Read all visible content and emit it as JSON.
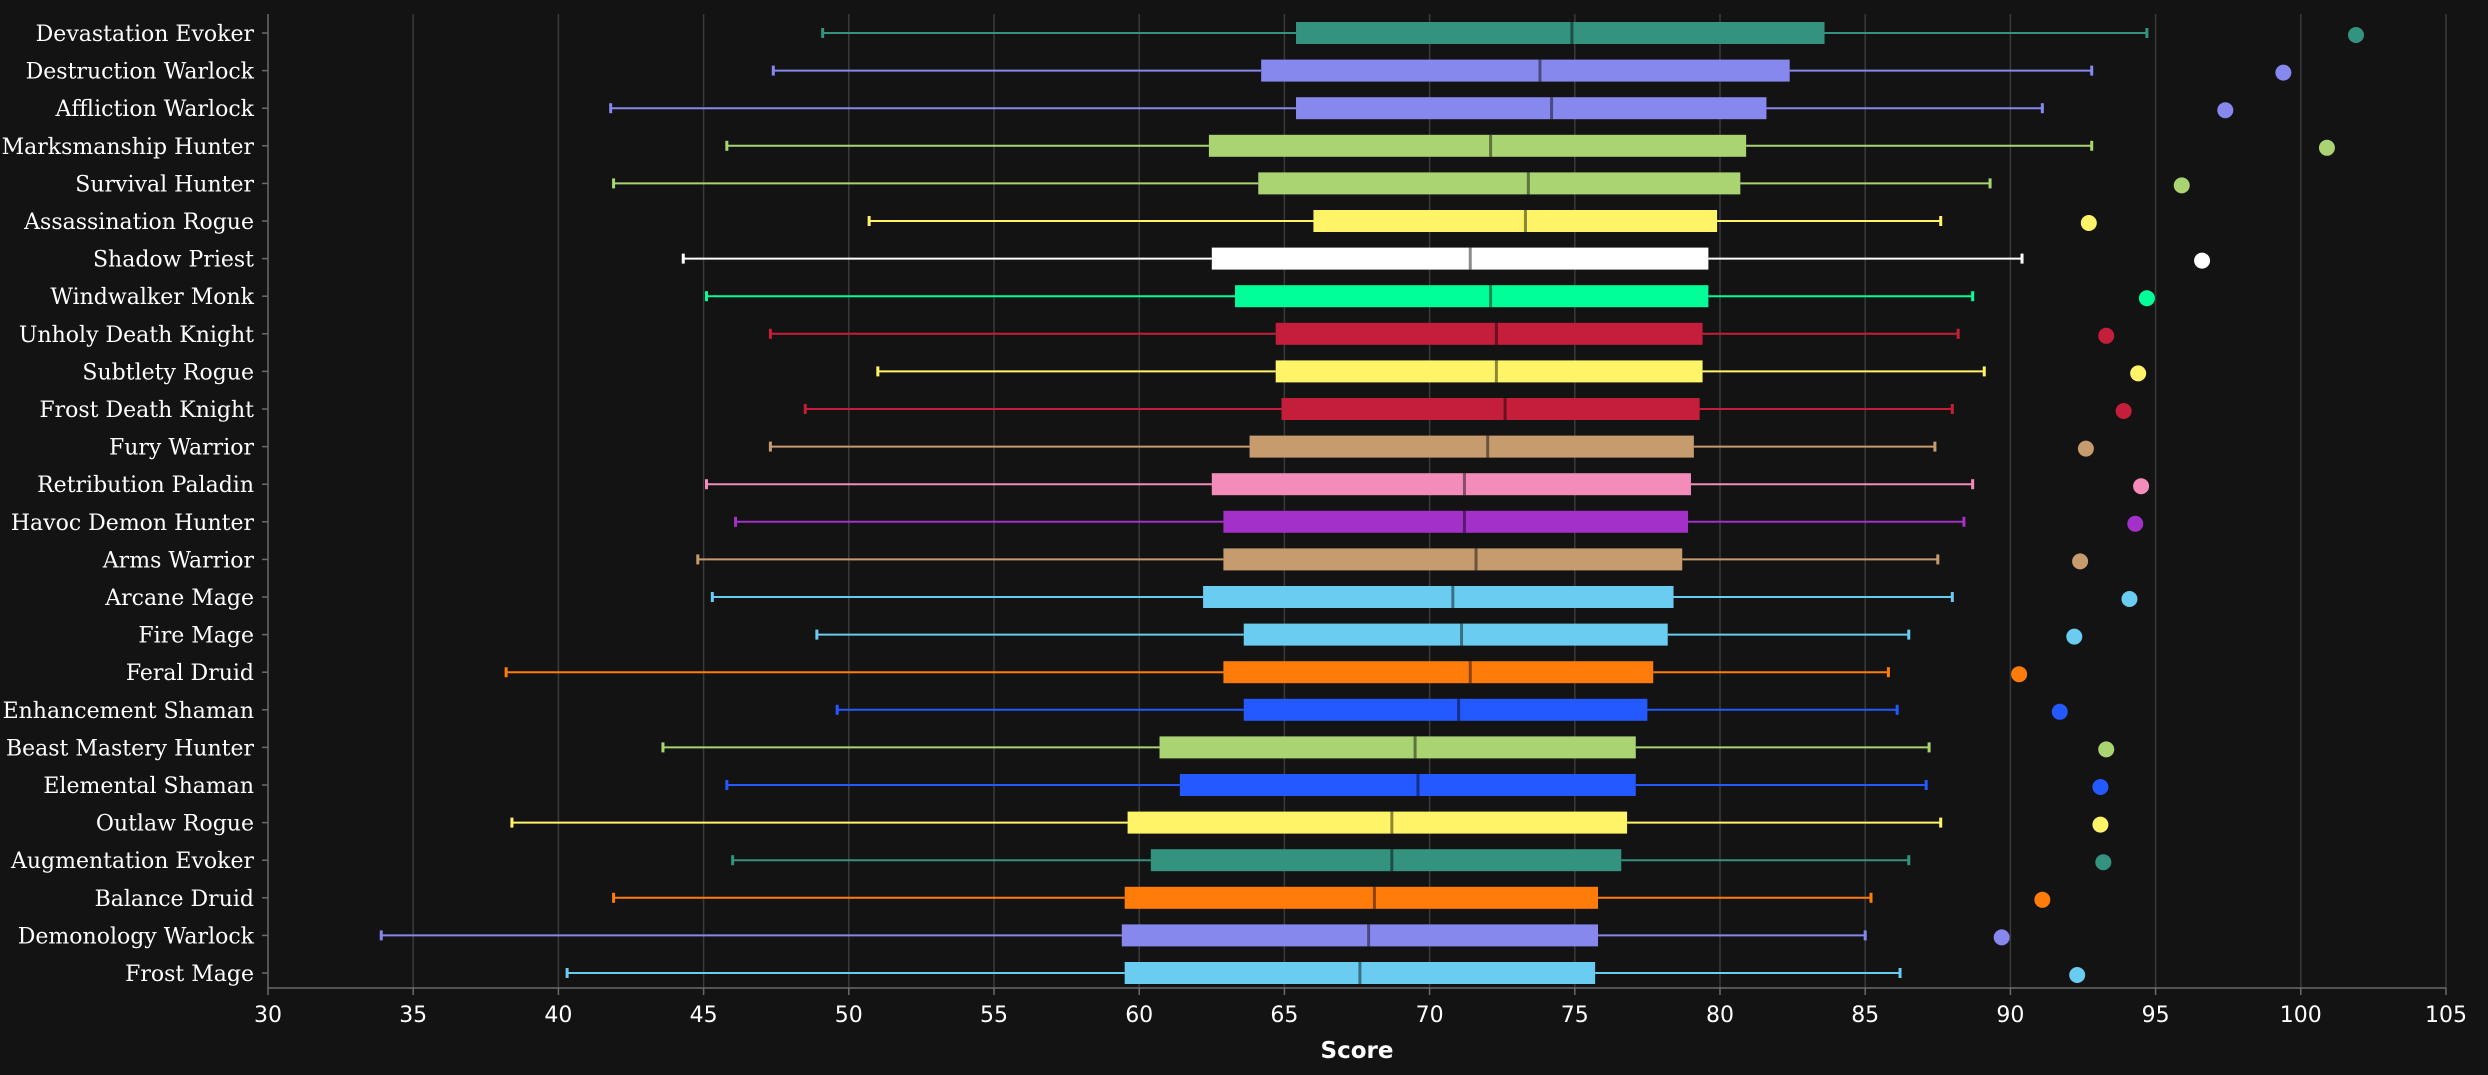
{
  "chart_data": {
    "type": "boxplot",
    "orientation": "horizontal",
    "xlabel": "Score",
    "xlim": [
      30,
      105
    ],
    "xticks": [
      30,
      35,
      40,
      45,
      50,
      55,
      60,
      65,
      70,
      75,
      80,
      85,
      90,
      95,
      100,
      105
    ],
    "grid": true,
    "series": [
      {
        "name": "Devastation Evoker",
        "color": "#33937f",
        "min": 49.1,
        "q1": 65.4,
        "median": 74.9,
        "q3": 83.6,
        "max": 94.7,
        "outlier": 101.9
      },
      {
        "name": "Destruction Warlock",
        "color": "#8788ee",
        "min": 47.4,
        "q1": 64.2,
        "median": 73.8,
        "q3": 82.4,
        "max": 92.8,
        "outlier": 99.4
      },
      {
        "name": "Affliction Warlock",
        "color": "#8788ee",
        "min": 41.8,
        "q1": 65.4,
        "median": 74.2,
        "q3": 81.6,
        "max": 91.1,
        "outlier": 97.4
      },
      {
        "name": "Marksmanship Hunter",
        "color": "#aad372",
        "min": 45.8,
        "q1": 62.4,
        "median": 72.1,
        "q3": 80.9,
        "max": 92.8,
        "outlier": 100.9
      },
      {
        "name": "Survival Hunter",
        "color": "#aad372",
        "min": 41.9,
        "q1": 64.1,
        "median": 73.4,
        "q3": 80.7,
        "max": 89.3,
        "outlier": 95.9
      },
      {
        "name": "Assassination Rogue",
        "color": "#fff468",
        "min": 50.7,
        "q1": 66,
        "median": 73.3,
        "q3": 79.9,
        "max": 87.6,
        "outlier": 92.7
      },
      {
        "name": "Shadow Priest",
        "color": "#ffffff",
        "min": 44.3,
        "q1": 62.5,
        "median": 71.4,
        "q3": 79.6,
        "max": 90.4,
        "outlier": 96.6
      },
      {
        "name": "Windwalker Monk",
        "color": "#00ff98",
        "min": 45.1,
        "q1": 63.3,
        "median": 72.1,
        "q3": 79.6,
        "max": 88.7,
        "outlier": 94.7
      },
      {
        "name": "Unholy Death Knight",
        "color": "#c41e3a",
        "min": 47.3,
        "q1": 64.7,
        "median": 72.3,
        "q3": 79.4,
        "max": 88.2,
        "outlier": 93.3
      },
      {
        "name": "Subtlety Rogue",
        "color": "#fff468",
        "min": 51,
        "q1": 64.7,
        "median": 72.3,
        "q3": 79.4,
        "max": 89.1,
        "outlier": 94.4
      },
      {
        "name": "Frost Death Knight",
        "color": "#c41e3a",
        "min": 48.5,
        "q1": 64.9,
        "median": 72.6,
        "q3": 79.3,
        "max": 88,
        "outlier": 93.9
      },
      {
        "name": "Fury Warrior",
        "color": "#c69b6d",
        "min": 47.3,
        "q1": 63.8,
        "median": 72,
        "q3": 79.1,
        "max": 87.4,
        "outlier": 92.6
      },
      {
        "name": "Retribution Paladin",
        "color": "#f48cba",
        "min": 45.1,
        "q1": 62.5,
        "median": 71.2,
        "q3": 79,
        "max": 88.7,
        "outlier": 94.5
      },
      {
        "name": "Havoc Demon Hunter",
        "color": "#a330c9",
        "min": 46.1,
        "q1": 62.9,
        "median": 71.2,
        "q3": 78.9,
        "max": 88.4,
        "outlier": 94.3
      },
      {
        "name": "Arms Warrior",
        "color": "#c69b6d",
        "min": 44.8,
        "q1": 62.9,
        "median": 71.6,
        "q3": 78.7,
        "max": 87.5,
        "outlier": 92.4
      },
      {
        "name": "Arcane Mage",
        "color": "#69ccf0",
        "min": 45.3,
        "q1": 62.2,
        "median": 70.8,
        "q3": 78.4,
        "max": 88,
        "outlier": 94.1
      },
      {
        "name": "Fire Mage",
        "color": "#69ccf0",
        "min": 48.9,
        "q1": 63.6,
        "median": 71.1,
        "q3": 78.2,
        "max": 86.5,
        "outlier": 92.2
      },
      {
        "name": "Feral Druid",
        "color": "#ff7c0a",
        "min": 38.2,
        "q1": 62.9,
        "median": 71.4,
        "q3": 77.7,
        "max": 85.8,
        "outlier": 90.3
      },
      {
        "name": "Enhancement Shaman",
        "color": "#2459ff",
        "min": 49.6,
        "q1": 63.6,
        "median": 71,
        "q3": 77.5,
        "max": 86.1,
        "outlier": 91.7
      },
      {
        "name": "Beast Mastery Hunter",
        "color": "#aad372",
        "min": 43.6,
        "q1": 60.7,
        "median": 69.5,
        "q3": 77.1,
        "max": 87.2,
        "outlier": 93.3
      },
      {
        "name": "Elemental Shaman",
        "color": "#2459ff",
        "min": 45.8,
        "q1": 61.4,
        "median": 69.6,
        "q3": 77.1,
        "max": 87.1,
        "outlier": 93.1
      },
      {
        "name": "Outlaw Rogue",
        "color": "#fff468",
        "min": 38.4,
        "q1": 59.6,
        "median": 68.7,
        "q3": 76.8,
        "max": 87.6,
        "outlier": 93.1
      },
      {
        "name": "Augmentation Evoker",
        "color": "#33937f",
        "min": 46,
        "q1": 60.4,
        "median": 68.7,
        "q3": 76.6,
        "max": 86.5,
        "outlier": 93.2
      },
      {
        "name": "Balance Druid",
        "color": "#ff7c0a",
        "min": 41.9,
        "q1": 59.5,
        "median": 68.1,
        "q3": 75.8,
        "max": 85.2,
        "outlier": 91.1
      },
      {
        "name": "Demonology Warlock",
        "color": "#8788ee",
        "min": 33.9,
        "q1": 59.4,
        "median": 67.9,
        "q3": 75.8,
        "max": 85,
        "outlier": 89.7
      },
      {
        "name": "Frost Mage",
        "color": "#69ccf0",
        "min": 40.3,
        "q1": 59.5,
        "median": 67.6,
        "q3": 75.7,
        "max": 86.2,
        "outlier": 92.3
      }
    ]
  }
}
